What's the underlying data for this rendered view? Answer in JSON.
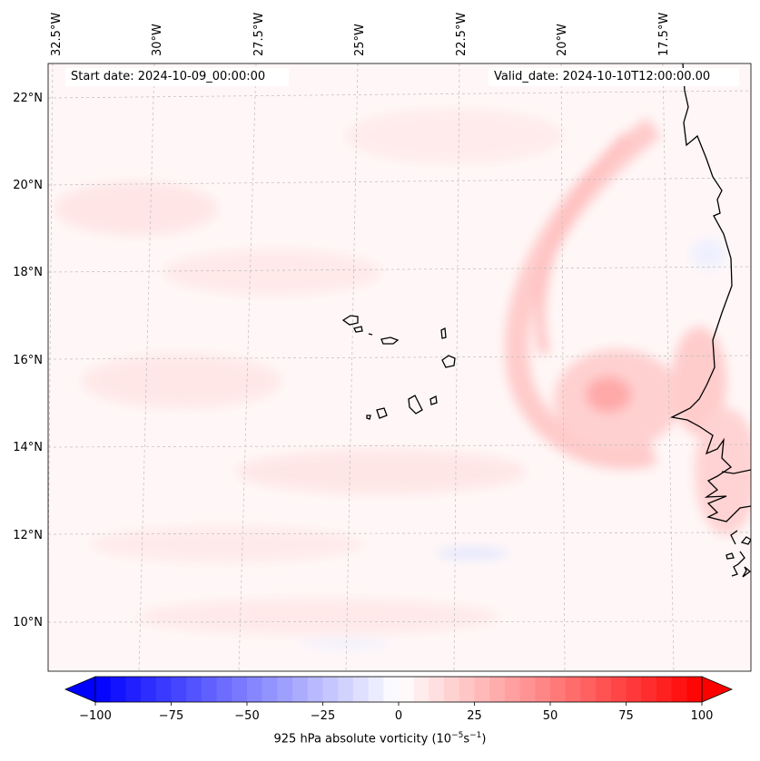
{
  "map": {
    "start_label": "Start date: 2024-10-09_00:00:00",
    "valid_label": "Valid_date: 2024-10-10T12:00:00.00",
    "lon_labels": [
      "32.5°W",
      "30°W",
      "27.5°W",
      "25°W",
      "22.5°W",
      "20°W",
      "17.5°W"
    ],
    "lat_labels": [
      "22°N",
      "20°N",
      "18°N",
      "16°N",
      "14°N",
      "12°N",
      "10°N"
    ],
    "region": "Cape Verde islands and West African coast"
  },
  "colorbar": {
    "ticks": [
      "−100",
      "−75",
      "−50",
      "−25",
      "0",
      "25",
      "50",
      "75",
      "100"
    ],
    "title_prefix": "925 hPa absolute vorticity (10",
    "title_exp1": "−5",
    "title_unit": "s",
    "title_exp2": "−1",
    "title_suffix": ")",
    "min": -100,
    "max": 100,
    "negative_color": "#0000ff",
    "neutral_color": "#ffffff",
    "positive_color": "#ff0000"
  }
}
